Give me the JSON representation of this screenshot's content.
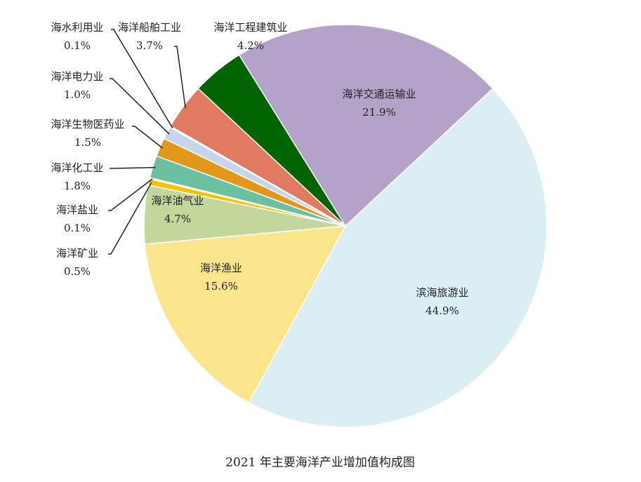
{
  "chart_data": {
    "type": "pie",
    "title": "2021 年主要海洋产业增加值构成图",
    "categories": [
      "滨海旅游业",
      "海洋渔业",
      "海洋油气业",
      "海洋矿业",
      "海洋盐业",
      "海洋化工业",
      "海洋生物医药业",
      "海洋电力业",
      "海水利用业",
      "海洋船舶工业",
      "海洋工程建筑业",
      "海洋交通运输业"
    ],
    "values": [
      44.9,
      15.6,
      4.7,
      0.5,
      0.1,
      1.8,
      1.5,
      1.0,
      0.1,
      3.7,
      4.2,
      21.9
    ],
    "value_labels": [
      "44.9%",
      "15.6%",
      "4.7%",
      "0.5%",
      "0.1%",
      "1.8%",
      "1.5%",
      "1.0%",
      "0.1%",
      "3.7%",
      "4.2%",
      "21.9%"
    ],
    "colors": [
      "#dbeef4",
      "#fae48c",
      "#c3d69b",
      "#ffc000",
      "#8c8c8c",
      "#6cc0a2",
      "#e2961a",
      "#c6d5ec",
      "#f2f2f2",
      "#e07b62",
      "#006400",
      "#b4a3c9"
    ]
  }
}
